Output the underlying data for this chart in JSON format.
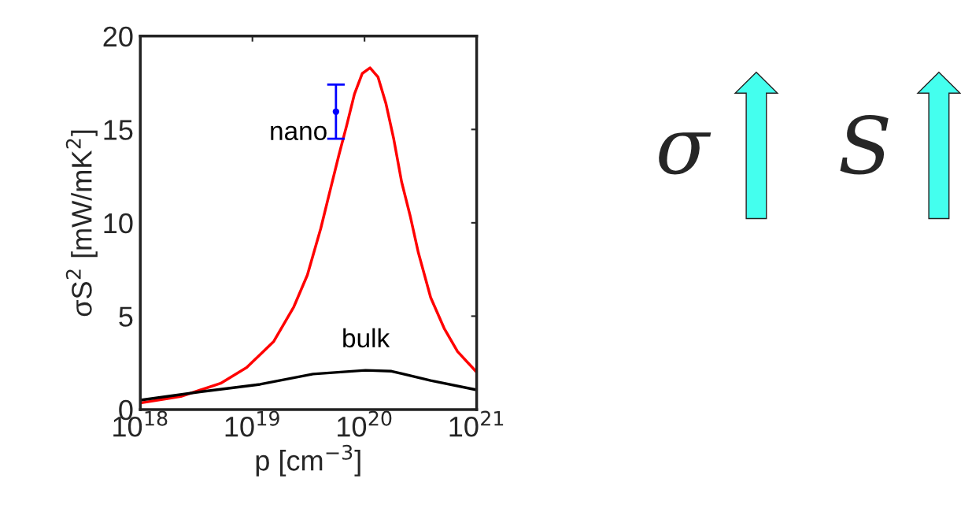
{
  "chart_data": {
    "type": "line",
    "xlabel": "p [cm$^{−3}$]",
    "ylabel": "σS$^{2}$ [mW/mK$^{2}$]",
    "log": "x",
    "xlim": [
      1e+18,
      1e+21
    ],
    "ylim": [
      0,
      20
    ],
    "xticks": [
      {
        "value": 1e+18,
        "label": "10$^{18}$"
      },
      {
        "value": 1e+19,
        "label": "10$^{19}$"
      },
      {
        "value": 1e+20,
        "label": "10$^{20}$"
      },
      {
        "value": 1e+21,
        "label": "10$^{21}$"
      }
    ],
    "yticks": [
      0,
      5,
      10,
      15,
      20
    ],
    "grid": false,
    "legend": false,
    "series": [
      {
        "name": "nano",
        "color": "#ff0000",
        "x": [
          1e+18,
          2.3e+18,
          5.2e+18,
          8.9e+18,
          1.55e+19,
          2.34e+19,
          3.09e+19,
          4.07e+19,
          5.01e+19,
          5.89e+19,
          6.92e+19,
          8.13e+19,
          9.55e+19,
          1.12e+20,
          1.32e+20,
          1.55e+20,
          1.82e+20,
          2.14e+20,
          2.57e+20,
          3.02e+20,
          3.89e+20,
          5.13e+20,
          6.76e+20,
          1e+21
        ],
        "values": [
          0.35,
          0.7,
          1.4,
          2.25,
          3.65,
          5.5,
          7.2,
          9.7,
          11.9,
          13.6,
          15.2,
          16.9,
          18.0,
          18.3,
          17.8,
          16.4,
          14.5,
          12.2,
          10.3,
          8.4,
          6.0,
          4.35,
          3.1,
          2.0
        ]
      },
      {
        "name": "bulk",
        "color": "#000000",
        "x": [
          1e+18,
          4e+18,
          1.17e+19,
          3.47e+19,
          1.02e+20,
          1.74e+20,
          3.89e+20,
          1e+21
        ],
        "values": [
          0.5,
          1.0,
          1.35,
          1.9,
          2.1,
          2.05,
          1.55,
          1.05
        ]
      },
      {
        "type": "scatter",
        "color": "#0000ff",
        "marker": "circle",
        "x": [
          5.56e+19
        ],
        "values": [
          15.95
        ],
        "errors": [
          1.45
        ]
      }
    ],
    "annotations": [
      "σ",
      "S"
    ]
  }
}
